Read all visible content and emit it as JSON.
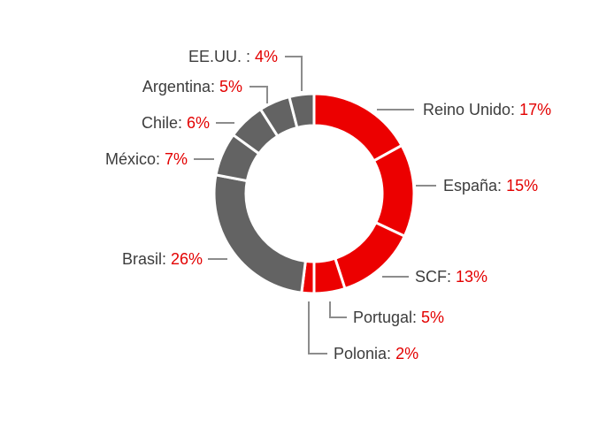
{
  "chart_data": {
    "type": "pie",
    "subtype": "donut",
    "title": "",
    "colors": {
      "highlight": "#EC0000",
      "other": "#636363",
      "separator": "#FFFFFF",
      "label_text": "#3C3C3C",
      "label_value": "#E30000",
      "leader_line": "#8C8C8C"
    },
    "slices": [
      {
        "name": "Reino Unido",
        "label": "Reino Unido:",
        "value": 17,
        "value_label": "17%",
        "group": "highlight"
      },
      {
        "name": "España",
        "label": "España:",
        "value": 15,
        "value_label": "15%",
        "group": "highlight"
      },
      {
        "name": "SCF",
        "label": "SCF:",
        "value": 13,
        "value_label": "13%",
        "group": "highlight"
      },
      {
        "name": "Portugal",
        "label": "Portugal:",
        "value": 5,
        "value_label": "5%",
        "group": "highlight"
      },
      {
        "name": "Polonia",
        "label": "Polonia:",
        "value": 2,
        "value_label": "2%",
        "group": "highlight"
      },
      {
        "name": "Brasil",
        "label": "Brasil:",
        "value": 26,
        "value_label": "26%",
        "group": "other"
      },
      {
        "name": "México",
        "label": "México:",
        "value": 7,
        "value_label": "7%",
        "group": "other"
      },
      {
        "name": "Chile",
        "label": "Chile:",
        "value": 6,
        "value_label": "6%",
        "group": "other"
      },
      {
        "name": "Argentina",
        "label": "Argentina:",
        "value": 5,
        "value_label": "5%",
        "group": "other"
      },
      {
        "name": "EE.UU.",
        "label": "EE.UU. :",
        "value": 4,
        "value_label": "4%",
        "group": "other"
      }
    ]
  }
}
